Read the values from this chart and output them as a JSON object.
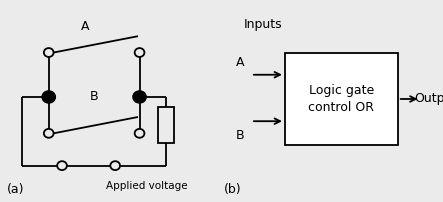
{
  "bg_color": "#ebebeb",
  "line_color": "#000000",
  "label_a_switch": "A",
  "label_b_switch": "B",
  "label_applied": "Applied voltage",
  "label_a_part": "(a)",
  "label_b_part": "(b)",
  "label_inputs": "Inputs",
  "label_output": "Output",
  "label_logic": "Logic gate\ncontrol OR",
  "label_input_a": "A",
  "label_input_b": "B"
}
